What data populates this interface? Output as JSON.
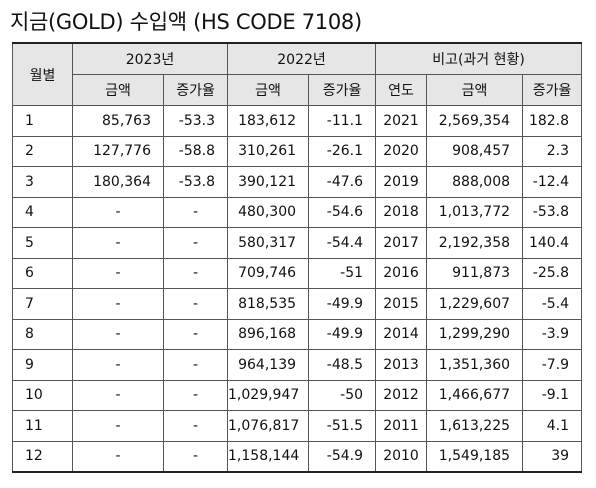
{
  "title": "지금(GOLD) 수입액 (HS CODE 7108)",
  "headers": {
    "month": "월별",
    "y2023": "2023년",
    "y2022": "2022년",
    "compare": "비고(과거 현황)",
    "amount": "금액",
    "rate": "증가율",
    "year": "연도"
  },
  "rows": [
    {
      "m": "1",
      "a23": "85,763",
      "r23": "-53.3",
      "a22": "183,612",
      "r22": "-11.1",
      "yr": "2021",
      "ap": "2,569,354",
      "rp": "182.8"
    },
    {
      "m": "2",
      "a23": "127,776",
      "r23": "-58.8",
      "a22": "310,261",
      "r22": "-26.1",
      "yr": "2020",
      "ap": "908,457",
      "rp": "2.3"
    },
    {
      "m": "3",
      "a23": "180,364",
      "r23": "-53.8",
      "a22": "390,121",
      "r22": "-47.6",
      "yr": "2019",
      "ap": "888,008",
      "rp": "-12.4"
    },
    {
      "m": "4",
      "a23": "-",
      "r23": "-",
      "a22": "480,300",
      "r22": "-54.6",
      "yr": "2018",
      "ap": "1,013,772",
      "rp": "-53.8"
    },
    {
      "m": "5",
      "a23": "-",
      "r23": "-",
      "a22": "580,317",
      "r22": "-54.4",
      "yr": "2017",
      "ap": "2,192,358",
      "rp": "140.4"
    },
    {
      "m": "6",
      "a23": "-",
      "r23": "-",
      "a22": "709,746",
      "r22": "-51",
      "yr": "2016",
      "ap": "911,873",
      "rp": "-25.8"
    },
    {
      "m": "7",
      "a23": "-",
      "r23": "-",
      "a22": "818,535",
      "r22": "-49.9",
      "yr": "2015",
      "ap": "1,229,607",
      "rp": "-5.4"
    },
    {
      "m": "8",
      "a23": "-",
      "r23": "-",
      "a22": "896,168",
      "r22": "-49.9",
      "yr": "2014",
      "ap": "1,299,290",
      "rp": "-3.9"
    },
    {
      "m": "9",
      "a23": "-",
      "r23": "-",
      "a22": "964,139",
      "r22": "-48.5",
      "yr": "2013",
      "ap": "1,351,360",
      "rp": "-7.9"
    },
    {
      "m": "10",
      "a23": "-",
      "r23": "-",
      "a22": "1,029,947",
      "r22": "-50",
      "yr": "2012",
      "ap": "1,466,677",
      "rp": "-9.1"
    },
    {
      "m": "11",
      "a23": "-",
      "r23": "-",
      "a22": "1,076,817",
      "r22": "-51.5",
      "yr": "2011",
      "ap": "1,613,225",
      "rp": "4.1"
    },
    {
      "m": "12",
      "a23": "-",
      "r23": "-",
      "a22": "1,158,144",
      "r22": "-54.9",
      "yr": "2010",
      "ap": "1,549,185",
      "rp": "39"
    }
  ]
}
